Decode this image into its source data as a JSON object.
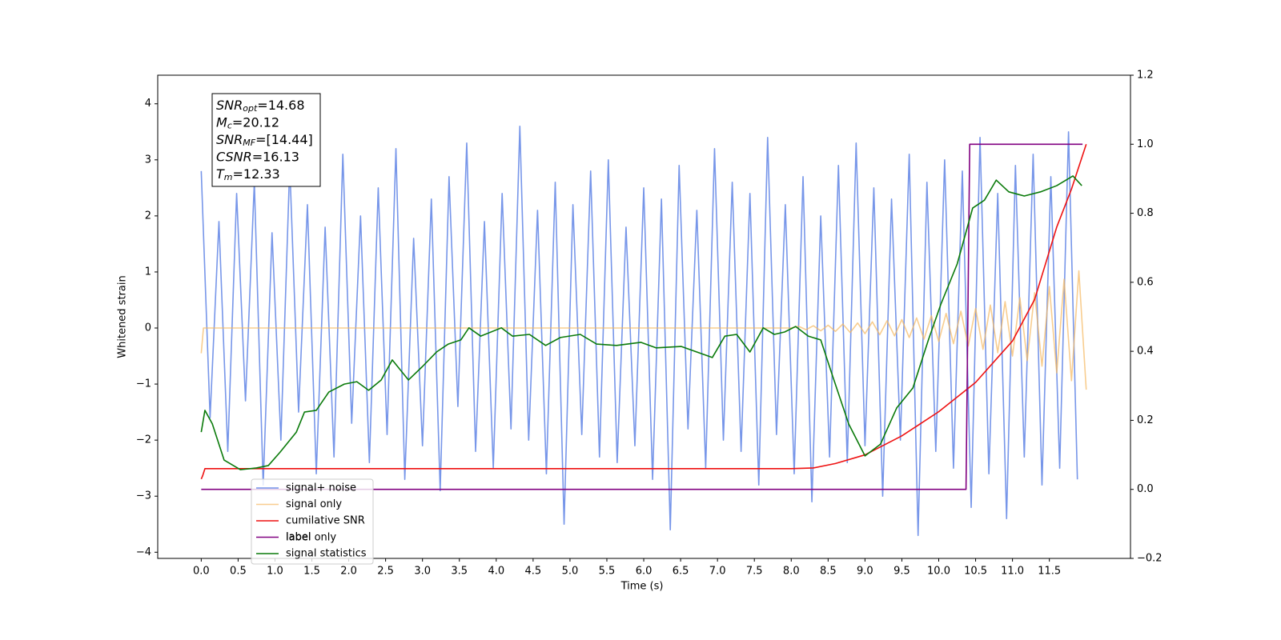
{
  "chart_data": {
    "type": "line",
    "xlabel": "Time (s)",
    "ylabel": "Whitened strain",
    "xlim": [
      -0.59,
      12.6
    ],
    "ylim": [
      -4.11,
      4.51
    ],
    "y2lim": [
      -0.2,
      1.2
    ],
    "xticks": [
      {
        "value": 0,
        "label": "0.0"
      },
      0.5,
      {
        "value": 1,
        "label": "1.0"
      },
      1.5,
      {
        "value": 2,
        "label": "2.0"
      },
      2.5,
      {
        "value": 3,
        "label": "3.0"
      },
      3.5,
      {
        "value": 4,
        "label": "4.0"
      },
      4.5,
      {
        "value": 5,
        "label": "5.0"
      },
      5.5,
      {
        "value": 6,
        "label": "6.0"
      },
      6.5,
      {
        "value": 7,
        "label": "7.0"
      },
      7.5,
      {
        "value": 8,
        "label": "8.0"
      },
      8.5,
      {
        "value": 9,
        "label": "9.0"
      },
      9.5,
      {
        "value": 10,
        "label": "10.0"
      },
      10.5,
      {
        "value": 11,
        "label": "11.0"
      },
      11.5
    ],
    "yticks": [
      {
        "value": -4,
        "label": "−4"
      },
      {
        "value": -3,
        "label": "−3"
      },
      {
        "value": -2,
        "label": "−2"
      },
      {
        "value": -1,
        "label": "−1"
      },
      0,
      1,
      2,
      3,
      4
    ],
    "y2ticks": [
      {
        "value": -0.2,
        "label": "−0.2"
      },
      {
        "value": 0,
        "label": "0.0"
      },
      0.2,
      0.4,
      0.6,
      0.8,
      {
        "value": 1,
        "label": "1.0"
      },
      1.2
    ],
    "legend": "lower left",
    "hidden_legend_text": "label only",
    "annotation": [
      {
        "main": "SNR",
        "sub": "opt",
        "text": "=14.68"
      },
      {
        "main": "M",
        "sub": "c",
        "text": "=20.12"
      },
      {
        "main": "SNR",
        "sub": "MF",
        "text": "=[14.44]"
      },
      {
        "main": "CSNR",
        "sub": "",
        "text": "=16.13"
      },
      {
        "main": "T",
        "sub": "m",
        "text": "=12.33"
      }
    ],
    "series": [
      {
        "name": "signal+ noise",
        "color": "#7090e8",
        "axis": "y",
        "x": [
          0,
          0.12,
          0.24,
          0.36,
          0.48,
          0.6,
          0.72,
          0.84,
          0.96,
          1.08,
          1.2,
          1.32,
          1.44,
          1.56,
          1.68,
          1.8,
          1.92,
          2.04,
          2.16,
          2.28,
          2.4,
          2.52,
          2.64,
          2.76,
          2.88,
          3.0,
          3.12,
          3.24,
          3.36,
          3.48,
          3.6,
          3.72,
          3.84,
          3.96,
          4.08,
          4.2,
          4.32,
          4.44,
          4.56,
          4.68,
          4.8,
          4.92,
          5.04,
          5.16,
          5.28,
          5.4,
          5.52,
          5.64,
          5.76,
          5.88,
          6.0,
          6.12,
          6.24,
          6.36,
          6.48,
          6.6,
          6.72,
          6.84,
          6.96,
          7.08,
          7.2,
          7.32,
          7.44,
          7.56,
          7.68,
          7.8,
          7.92,
          8.04,
          8.16,
          8.28,
          8.4,
          8.52,
          8.64,
          8.76,
          8.88,
          9.0,
          9.12,
          9.24,
          9.36,
          9.48,
          9.6,
          9.72,
          9.84,
          9.96,
          10.08,
          10.2,
          10.32,
          10.44,
          10.56,
          10.68,
          10.8,
          10.92,
          11.04,
          11.16,
          11.28,
          11.4,
          11.52,
          11.64,
          11.76,
          11.88
        ],
        "values": [
          2.8,
          -1.6,
          1.9,
          -2.2,
          2.4,
          -1.3,
          2.6,
          -2.8,
          1.7,
          -2.0,
          2.9,
          -1.5,
          2.2,
          -2.6,
          1.8,
          -2.3,
          3.1,
          -1.7,
          2.0,
          -2.4,
          2.5,
          -1.9,
          3.2,
          -2.7,
          1.6,
          -2.1,
          2.3,
          -2.9,
          2.7,
          -1.4,
          3.3,
          -2.2,
          1.9,
          -2.5,
          2.4,
          -1.8,
          3.6,
          -2.0,
          2.1,
          -2.6,
          2.6,
          -3.5,
          2.2,
          -1.9,
          2.8,
          -2.3,
          3.0,
          -2.4,
          1.8,
          -2.1,
          2.5,
          -2.7,
          2.3,
          -3.6,
          2.9,
          -1.8,
          2.1,
          -2.5,
          3.2,
          -2.0,
          2.6,
          -2.2,
          2.4,
          -2.8,
          3.4,
          -1.9,
          2.2,
          -2.6,
          2.7,
          -3.1,
          2.0,
          -2.3,
          2.9,
          -2.4,
          3.3,
          -2.1,
          2.5,
          -3.0,
          2.3,
          -2.0,
          3.1,
          -3.7,
          2.6,
          -2.2,
          3.0,
          -2.5,
          2.8,
          -3.2,
          3.4,
          -2.6,
          2.4,
          -3.4,
          2.9,
          -2.3,
          3.1,
          -2.8,
          2.7,
          -2.5,
          3.5,
          -2.7
        ]
      },
      {
        "name": "signal only",
        "color": "#f5b860",
        "axis": "y",
        "x": [
          0,
          0.03,
          8.0,
          8.1,
          8.2,
          8.3,
          8.4,
          8.5,
          8.6,
          8.7,
          8.8,
          8.9,
          9.0,
          9.1,
          9.2,
          9.3,
          9.4,
          9.5,
          9.6,
          9.7,
          9.8,
          9.9,
          10.0,
          10.1,
          10.2,
          10.3,
          10.4,
          10.5,
          10.6,
          10.7,
          10.8,
          10.9,
          11.0,
          11.1,
          11.2,
          11.3,
          11.4,
          11.5,
          11.6,
          11.7,
          11.8,
          11.9,
          12.0
        ],
        "values": [
          -0.45,
          0,
          0,
          0.03,
          -0.03,
          0.04,
          -0.05,
          0.05,
          -0.06,
          0.07,
          -0.08,
          0.09,
          -0.1,
          0.11,
          -0.12,
          0.13,
          -0.14,
          0.15,
          -0.17,
          0.18,
          -0.2,
          0.22,
          -0.24,
          0.26,
          -0.28,
          0.3,
          -0.32,
          0.35,
          -0.38,
          0.41,
          -0.44,
          0.47,
          -0.5,
          0.54,
          -0.58,
          0.63,
          -0.68,
          0.74,
          -0.8,
          0.87,
          -0.94,
          1.02,
          -1.1
        ]
      },
      {
        "name": "cumilative SNR",
        "color": "#ee1111",
        "axis": "y2",
        "x": [
          0,
          0.02,
          0.05,
          8.0,
          8.3,
          8.6,
          9.0,
          9.5,
          10.0,
          10.5,
          11.0,
          11.3,
          11.6,
          11.8,
          12.0
        ],
        "values": [
          0.03,
          0.04,
          0.06,
          0.06,
          0.062,
          0.075,
          0.1,
          0.155,
          0.225,
          0.31,
          0.43,
          0.55,
          0.76,
          0.87,
          1.0
        ]
      },
      {
        "name": "label",
        "color": "#800080",
        "axis": "y2",
        "x": [
          0,
          10.37,
          10.42,
          11.95
        ],
        "values": [
          0,
          0,
          1,
          1
        ]
      },
      {
        "name": "signal statistics",
        "color": "#0a7a0a",
        "axis": "y2",
        "x": [
          0,
          0.05,
          0.15,
          0.31,
          0.53,
          0.75,
          0.91,
          1.07,
          1.29,
          1.4,
          1.56,
          1.73,
          1.94,
          2.11,
          2.27,
          2.44,
          2.59,
          2.81,
          3.0,
          3.19,
          3.35,
          3.52,
          3.63,
          3.79,
          4.07,
          4.22,
          4.45,
          4.67,
          4.87,
          5.14,
          5.36,
          5.63,
          5.96,
          6.17,
          6.51,
          6.72,
          6.93,
          7.1,
          7.26,
          7.44,
          7.62,
          7.77,
          7.91,
          8.06,
          8.23,
          8.4,
          8.56,
          8.78,
          9.0,
          9.21,
          9.43,
          9.65,
          9.86,
          10.03,
          10.25,
          10.46,
          10.62,
          10.78,
          10.95,
          11.16,
          11.38,
          11.6,
          11.82,
          11.94
        ],
        "values": [
          0.166,
          0.229,
          0.19,
          0.085,
          0.057,
          0.062,
          0.069,
          0.108,
          0.166,
          0.224,
          0.229,
          0.282,
          0.305,
          0.312,
          0.287,
          0.317,
          0.375,
          0.317,
          0.356,
          0.398,
          0.421,
          0.433,
          0.468,
          0.444,
          0.468,
          0.444,
          0.449,
          0.417,
          0.44,
          0.449,
          0.421,
          0.417,
          0.426,
          0.41,
          0.414,
          0.398,
          0.382,
          0.444,
          0.449,
          0.398,
          0.468,
          0.449,
          0.456,
          0.472,
          0.444,
          0.433,
          0.329,
          0.189,
          0.097,
          0.131,
          0.236,
          0.294,
          0.433,
          0.537,
          0.653,
          0.815,
          0.838,
          0.896,
          0.862,
          0.85,
          0.862,
          0.88,
          0.908,
          0.88
        ]
      }
    ]
  }
}
